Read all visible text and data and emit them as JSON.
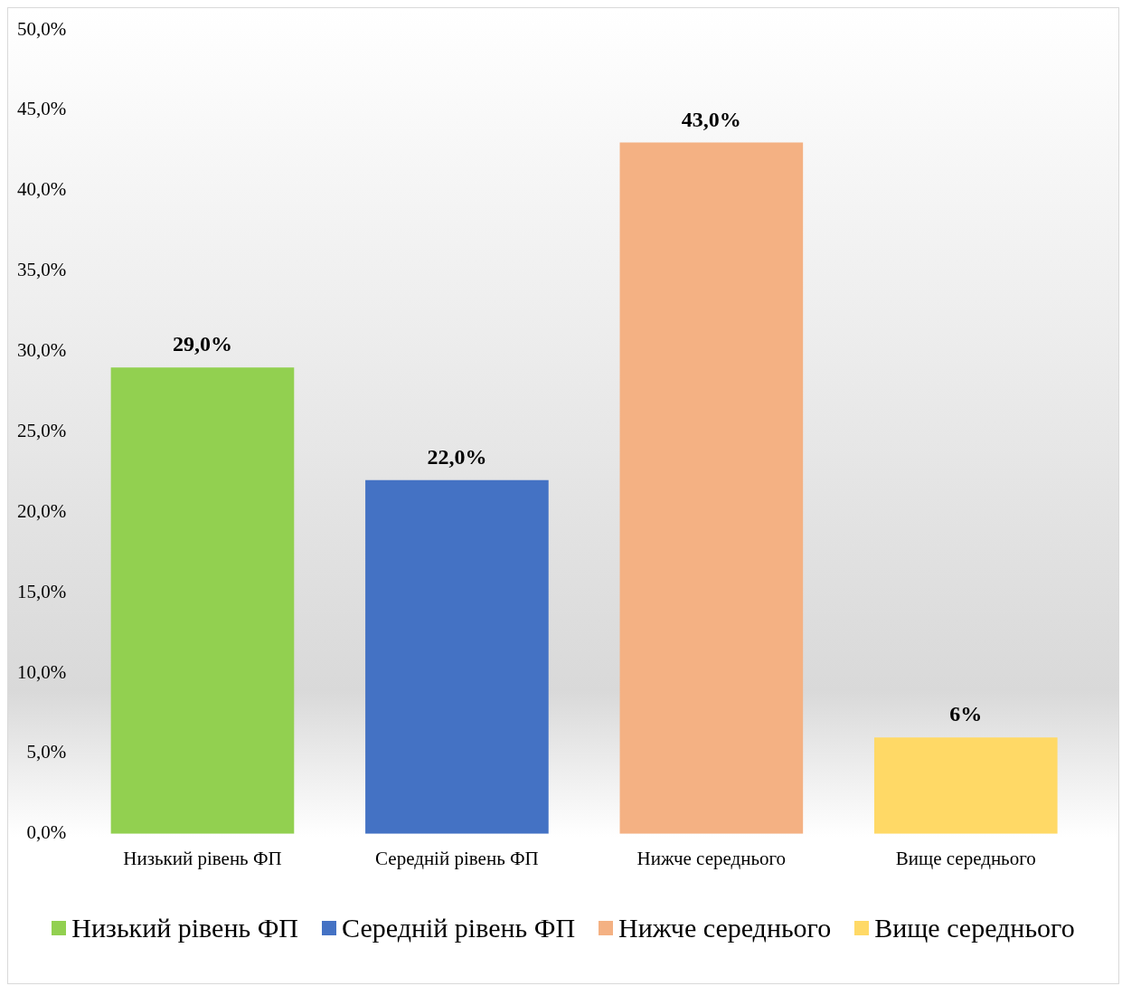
{
  "chart_data": {
    "type": "bar",
    "categories": [
      "Низький рівень ФП",
      "Середній рівень ФП",
      "Нижче середнього",
      "Вище середнього"
    ],
    "series": [
      {
        "name": "Низький рівень ФП",
        "color": "#92d050",
        "values": [
          29,
          null,
          null,
          null
        ],
        "value_labels": [
          "29,0%",
          null,
          null,
          null
        ]
      },
      {
        "name": "Середній рівень ФП",
        "color": "#4472c4",
        "values": [
          null,
          22,
          null,
          null
        ],
        "value_labels": [
          null,
          "22,0%",
          null,
          null
        ]
      },
      {
        "name": "Нижче середнього",
        "color": "#f4b183",
        "values": [
          null,
          null,
          43,
          null
        ],
        "value_labels": [
          null,
          null,
          "43,0%",
          null
        ]
      },
      {
        "name": "Вище середнього",
        "color": "#ffd966",
        "values": [
          null,
          null,
          null,
          6
        ],
        "value_labels": [
          null,
          null,
          null,
          "6%"
        ]
      }
    ],
    "ylim": [
      0,
      50
    ],
    "yticks": [
      {
        "value": 0,
        "label": "0,0%"
      },
      {
        "value": 5,
        "label": "5,0%"
      },
      {
        "value": 10,
        "label": "10,0%"
      },
      {
        "value": 15,
        "label": "15,0%"
      },
      {
        "value": 20,
        "label": "20,0%"
      },
      {
        "value": 25,
        "label": "25,0%"
      },
      {
        "value": 30,
        "label": "30,0%"
      },
      {
        "value": 35,
        "label": "35,0%"
      },
      {
        "value": 40,
        "label": "40,0%"
      },
      {
        "value": 45,
        "label": "45,0%"
      },
      {
        "value": 50,
        "label": "50,0%"
      }
    ],
    "legend": "bottom"
  }
}
